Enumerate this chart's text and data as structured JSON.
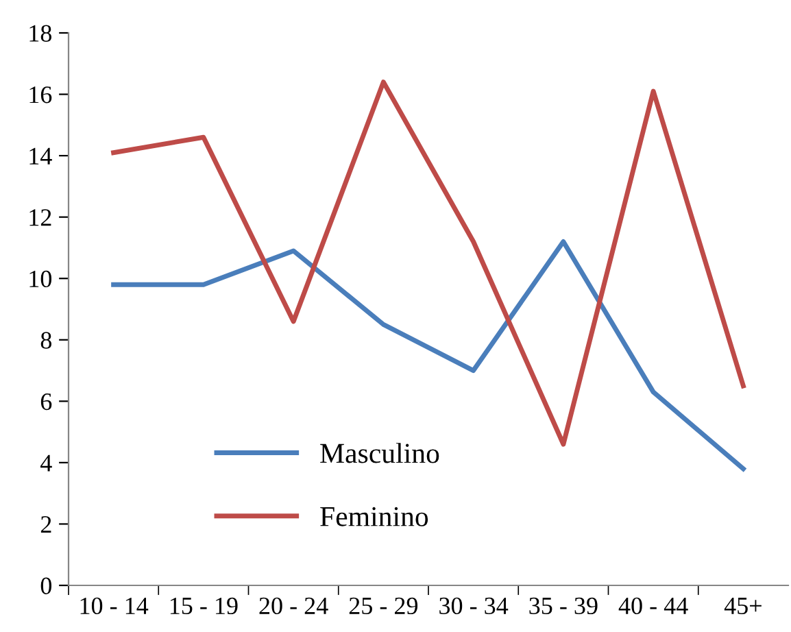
{
  "chart_data": {
    "type": "line",
    "categories": [
      "10 - 14",
      "15 - 19",
      "20 - 24",
      "25 - 29",
      "30 - 34",
      "35 - 39",
      "40 - 44",
      "45+"
    ],
    "series": [
      {
        "name": "Masculino",
        "color": "#4a7ebb",
        "values": [
          9.8,
          9.8,
          10.9,
          8.5,
          7.0,
          11.2,
          6.3,
          3.8
        ]
      },
      {
        "name": "Feminino",
        "color": "#be4b48",
        "values": [
          14.1,
          14.6,
          8.6,
          16.4,
          11.2,
          4.6,
          16.1,
          6.5
        ]
      }
    ],
    "ylim": [
      0,
      18
    ],
    "yticks": [
      0,
      2,
      4,
      6,
      8,
      10,
      12,
      14,
      16,
      18
    ],
    "grid": false,
    "legend": "bottom left",
    "marker": "none",
    "line_style": "solid"
  }
}
